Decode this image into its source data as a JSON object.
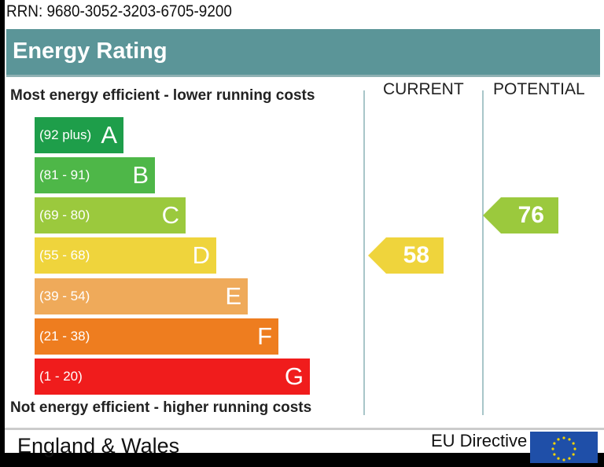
{
  "rrn": "RRN: 9680-3052-3203-6705-9200",
  "title": "Energy Rating",
  "chart_data": {
    "type": "bar",
    "top_label": "Most energy efficient - lower running costs",
    "bottom_label": "Not energy efficient - higher running costs",
    "columns": [
      "CURRENT",
      "POTENTIAL"
    ],
    "bands": [
      {
        "letter": "A",
        "range": "(92 plus)",
        "color": "#1e9e4a"
      },
      {
        "letter": "B",
        "range": "(81 - 91)",
        "color": "#4eb748"
      },
      {
        "letter": "C",
        "range": "(69 - 80)",
        "color": "#9bc93d"
      },
      {
        "letter": "D",
        "range": "(55 - 68)",
        "color": "#efd43c"
      },
      {
        "letter": "E",
        "range": "(39 - 54)",
        "color": "#efaa5a"
      },
      {
        "letter": "F",
        "range": "(21 - 38)",
        "color": "#ee7d1f"
      },
      {
        "letter": "G",
        "range": "(1 - 20)",
        "color": "#f01c1c"
      }
    ],
    "current": {
      "value": 58,
      "band": "D",
      "color": "#efd43c"
    },
    "potential": {
      "value": 76,
      "band": "C",
      "color": "#9bc93d"
    }
  },
  "footer": {
    "country": "England & Wales",
    "directive": "EU Directive",
    "flag_color": "#1f4fa8"
  }
}
